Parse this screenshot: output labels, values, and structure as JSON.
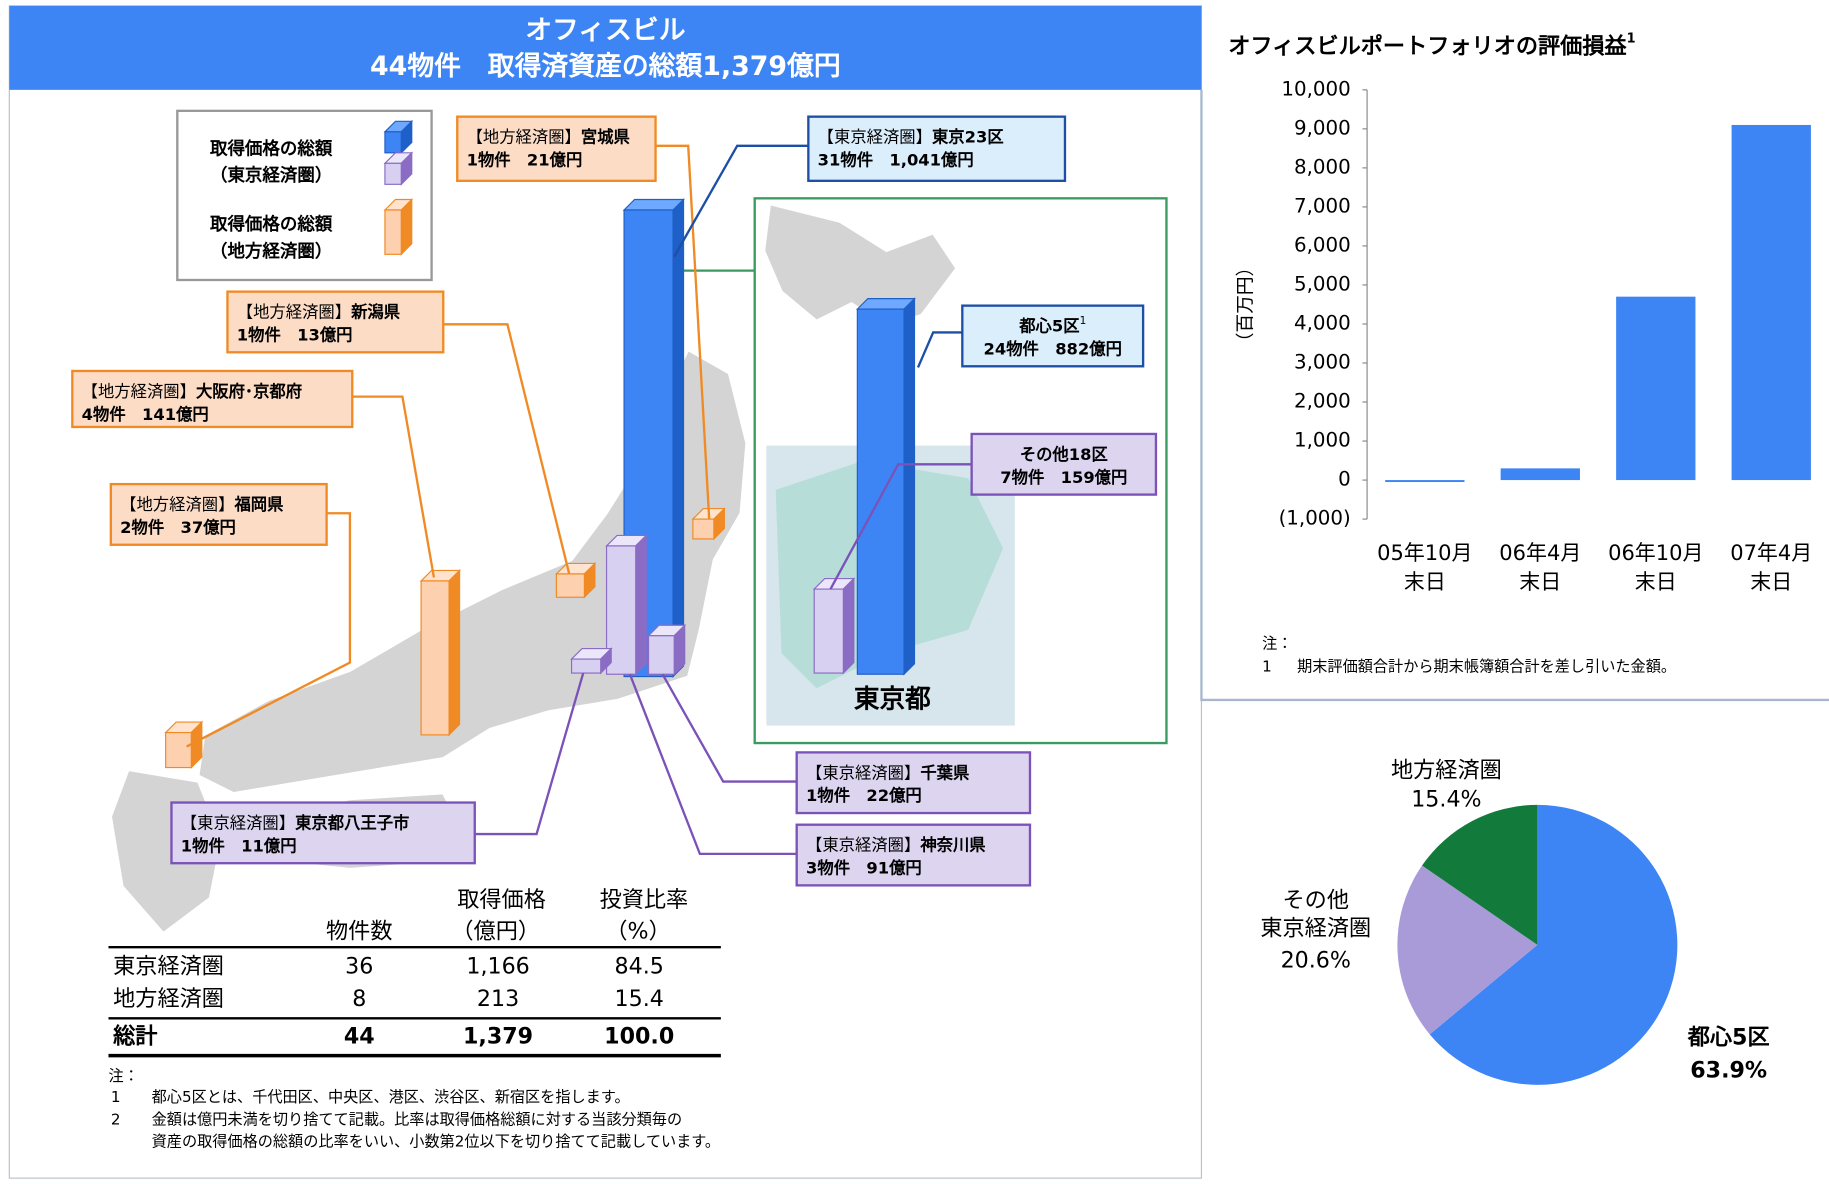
{
  "header": {
    "title": "オフィスビル",
    "subtitle": "44物件　取得済資産の総額1,379億円"
  },
  "legend": [
    {
      "line1": "取得価格の総額",
      "line2": "（東京経済圏）"
    },
    {
      "line1": "取得価格の総額",
      "line2": "（地方経済圏）"
    }
  ],
  "callouts": [
    {
      "region": "【地方経済圏】",
      "name": "宮城県",
      "detail": "1物件　21億円"
    },
    {
      "region": "【東京経済圏】",
      "name": "東京23区",
      "detail": "31物件　1,041億円"
    },
    {
      "region": "【地方経済圏】",
      "name": "新潟県",
      "detail": "1物件　13億円"
    },
    {
      "region": "【地方経済圏】",
      "name": "大阪府･京都府",
      "detail": "4物件　141億円"
    },
    {
      "region": "【地方経済圏】",
      "name": "福岡県",
      "detail": "2物件　37億円"
    },
    {
      "name": "都心5区",
      "sup": "1",
      "detail": "24物件　882億円"
    },
    {
      "name": "その他18区",
      "detail": "7物件　159億円"
    },
    {
      "region": "【東京経済圏】",
      "name": "千葉県",
      "detail": "1物件　22億円"
    },
    {
      "region": "【東京経済圏】",
      "name": "神奈川県",
      "detail": "3物件　91億円"
    },
    {
      "region": "【東京経済圏】",
      "name": "東京都八王子市",
      "detail": "1物件　11億円"
    }
  ],
  "inset_label": "東京都",
  "table": {
    "columns": [
      [
        "物件数"
      ],
      [
        "取得価格",
        "（億円）"
      ],
      [
        "投資比率",
        "（%）"
      ]
    ],
    "rows": [
      [
        "東京経済圏",
        "36",
        "1,166",
        "84.5"
      ],
      [
        "地方経済圏",
        "8",
        "213",
        "15.4"
      ]
    ],
    "total": [
      "総計",
      "44",
      "1,379",
      "100.0"
    ]
  },
  "notes": {
    "heading": "注：",
    "items": [
      {
        "num": "1",
        "lines": [
          "都心5区とは、千代田区、中央区、港区、渋谷区、新宿区を指します。"
        ]
      },
      {
        "num": "2",
        "lines": [
          "金額は億円未満を切り捨てて記載。比率は取得価格総額に対する当該分類毎の",
          "資産の取得価格の総額の比率をいい、小数第2位以下を切り捨てて記載しています。"
        ]
      }
    ]
  },
  "chart_data": [
    {
      "type": "bar",
      "title": "オフィスビルポートフォリオの評価損益",
      "title_sup": "1",
      "ylabel": "（百万円）",
      "categories": [
        "05年10月\n末日",
        "06年4月\n末日",
        "06年10月\n末日",
        "07年4月\n末日"
      ],
      "values": [
        -50,
        300,
        4700,
        9100
      ],
      "color": "#3d85f5",
      "ylim": [
        -1000,
        10000
      ],
      "yticks": [
        {
          "value": -1000,
          "label": "(1,000)"
        },
        0,
        {
          "value": 1000,
          "label": "1,000"
        },
        {
          "value": 2000,
          "label": "2,000"
        },
        {
          "value": 3000,
          "label": "3,000"
        },
        {
          "value": 4000,
          "label": "4,000"
        },
        {
          "value": 5000,
          "label": "5,000"
        },
        {
          "value": 6000,
          "label": "6,000"
        },
        {
          "value": 7000,
          "label": "7,000"
        },
        {
          "value": 8000,
          "label": "8,000"
        },
        {
          "value": 9000,
          "label": "9,000"
        },
        {
          "value": 10000,
          "label": "10,000"
        }
      ],
      "notes": {
        "heading": "注：",
        "items": [
          {
            "num": "1",
            "text": "期末評価額合計から期末帳簿額合計を差し引いた金額。"
          }
        ]
      }
    },
    {
      "type": "pie",
      "categories": [
        "都心5区",
        "その他\n東京経済圏",
        "地方経済圏"
      ],
      "values": [
        63.9,
        20.6,
        15.4
      ],
      "value_labels": [
        "63.9%",
        "20.6%",
        "15.4%"
      ],
      "colors": [
        "#3d85f5",
        "#a99ad8",
        "#127a3a"
      ],
      "label_colors": [
        "#e6197e",
        "#000000",
        "#000000"
      ]
    }
  ]
}
